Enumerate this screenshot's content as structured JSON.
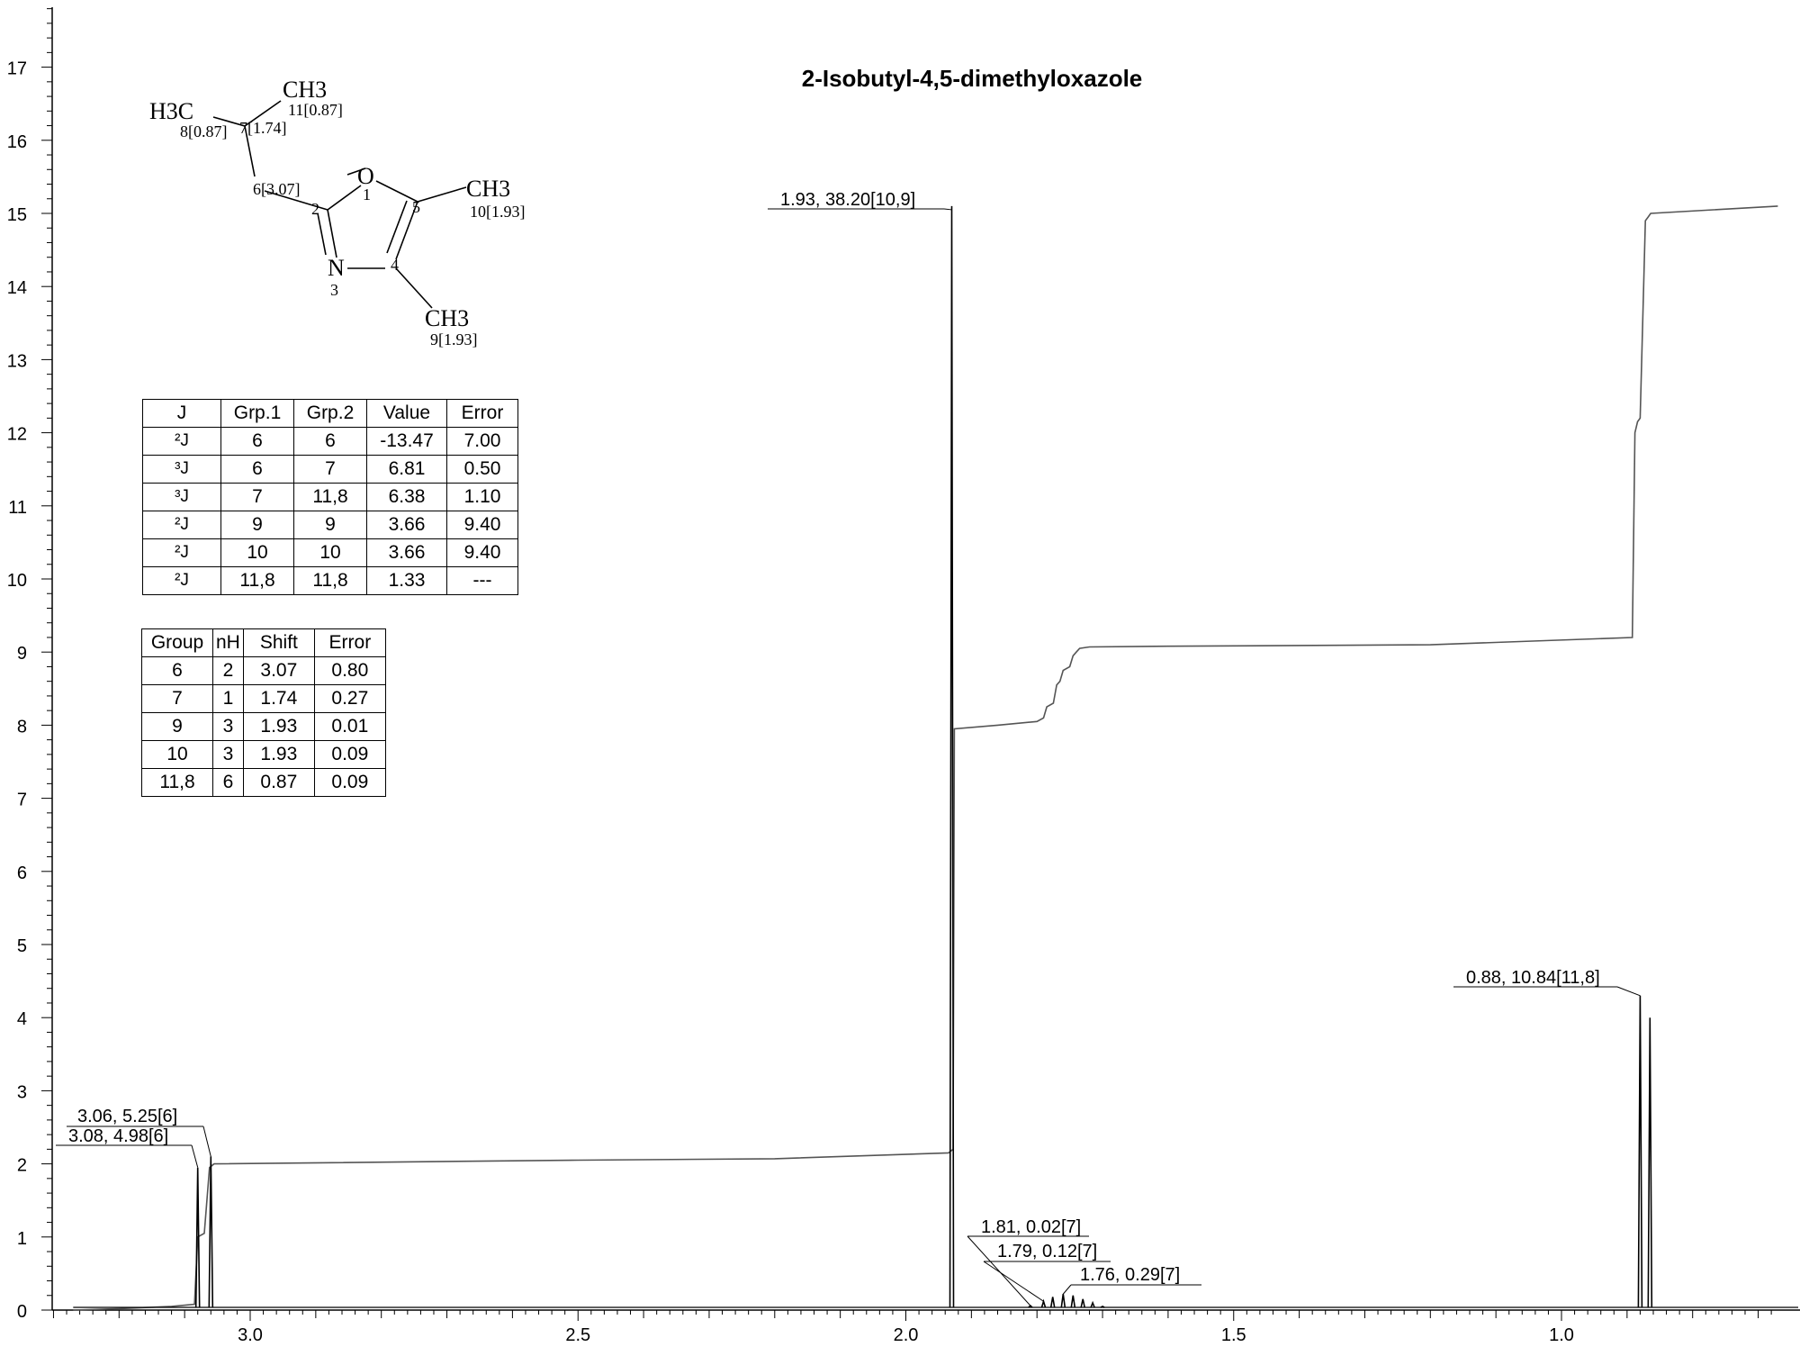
{
  "chart_data": {
    "type": "line",
    "title": "2-Isobutyl-4,5-dimethyloxazole",
    "xlabel": "",
    "ylabel": "",
    "x_reversed": true,
    "xlim": [
      3.3,
      0.67
    ],
    "ylim": [
      0,
      18
    ],
    "x_ticks": [
      3.0,
      2.5,
      2.0,
      1.5,
      1.0
    ],
    "x_tick_labels": [
      "3.0",
      "2.5",
      "2.0",
      "1.5",
      "1.0"
    ],
    "y_ticks": [
      0,
      1,
      2,
      3,
      4,
      5,
      6,
      7,
      8,
      9,
      10,
      11,
      12,
      13,
      14,
      15,
      16,
      17
    ],
    "y_tick_labels": [
      "0",
      "1",
      "2",
      "3",
      "4",
      "5",
      "6",
      "7",
      "8",
      "9",
      "10",
      "11",
      "12",
      "13",
      "14",
      "15",
      "16",
      "17"
    ],
    "grid": false,
    "series": [
      {
        "role": "spectrum",
        "peaks": [
          {
            "ppm": 3.08,
            "height": 1.95
          },
          {
            "ppm": 3.06,
            "height": 2.1
          },
          {
            "ppm": 1.93,
            "height": 15.1
          },
          {
            "ppm": 1.81,
            "height": 0.06
          },
          {
            "ppm": 1.79,
            "height": 0.12
          },
          {
            "ppm": 1.776,
            "height": 0.18
          },
          {
            "ppm": 1.76,
            "height": 0.22
          },
          {
            "ppm": 1.745,
            "height": 0.2
          },
          {
            "ppm": 1.73,
            "height": 0.15
          },
          {
            "ppm": 1.715,
            "height": 0.1
          },
          {
            "ppm": 1.7,
            "height": 0.05
          },
          {
            "ppm": 0.88,
            "height": 4.3
          },
          {
            "ppm": 0.865,
            "height": 4.0
          }
        ]
      },
      {
        "role": "integral",
        "x": [
          3.27,
          3.2,
          3.12,
          3.085,
          3.08,
          3.07,
          3.062,
          3.055,
          2.5,
          2.2,
          1.935,
          1.928,
          1.926,
          1.86,
          1.8,
          1.79,
          1.785,
          1.775,
          1.77,
          1.765,
          1.76,
          1.75,
          1.745,
          1.74,
          1.735,
          1.72,
          1.6,
          1.2,
          0.892,
          0.888,
          0.884,
          0.88,
          0.872,
          0.868,
          0.864,
          0.67
        ],
        "y": [
          0.0,
          0.02,
          0.05,
          0.08,
          1.0,
          1.05,
          1.95,
          2.0,
          2.05,
          2.07,
          2.15,
          2.2,
          7.95,
          8.0,
          8.05,
          8.1,
          8.25,
          8.3,
          8.55,
          8.6,
          8.75,
          8.8,
          8.95,
          9.0,
          9.05,
          9.07,
          9.08,
          9.1,
          9.2,
          12.0,
          12.15,
          12.2,
          14.9,
          14.95,
          15.0,
          15.1
        ]
      }
    ],
    "annotations": [
      {
        "text": "1.93, 38.20[10,9]",
        "ppm": 1.93
      },
      {
        "text": "3.06, 5.25[6]",
        "ppm": 3.06
      },
      {
        "text": "3.08, 4.98[6]",
        "ppm": 3.08
      },
      {
        "text": "1.81, 0.02[7]",
        "ppm": 1.81
      },
      {
        "text": "1.79, 0.12[7]",
        "ppm": 1.79
      },
      {
        "text": "1.76, 0.29[7]",
        "ppm": 1.76
      },
      {
        "text": "0.88, 10.84[11,8]",
        "ppm": 0.88
      }
    ]
  },
  "molecule": {
    "atoms": {
      "O1": "O",
      "N3": "N",
      "CH3_11": "CH3",
      "H3C_8": "H3C",
      "CH3_10": "CH3",
      "CH3_9": "CH3"
    },
    "labels": {
      "a1": "1",
      "a2": "2",
      "a3": "3",
      "a4": "4",
      "a5": "5",
      "a6": "6[3.07]",
      "a7": "7[1.74]",
      "a8": "8[0.87]",
      "a9": "9[1.93]",
      "a10": "10[1.93]",
      "a11": "11[0.87]"
    }
  },
  "coupling_table": {
    "headers": [
      "J",
      "Grp.1",
      "Grp.2",
      "Value",
      "Error"
    ],
    "rows": [
      [
        "²J",
        "6",
        "6",
        "-13.47",
        "7.00"
      ],
      [
        "³J",
        "6",
        "7",
        "6.81",
        "0.50"
      ],
      [
        "³J",
        "7",
        "11,8",
        "6.38",
        "1.10"
      ],
      [
        "²J",
        "9",
        "9",
        "3.66",
        "9.40"
      ],
      [
        "²J",
        "10",
        "10",
        "3.66",
        "9.40"
      ],
      [
        "²J",
        "11,8",
        "11,8",
        "1.33",
        "---"
      ]
    ]
  },
  "shift_table": {
    "headers": [
      "Group",
      "nH",
      "Shift",
      "Error"
    ],
    "rows": [
      [
        "6",
        "2",
        "3.07",
        "0.80"
      ],
      [
        "7",
        "1",
        "1.74",
        "0.27"
      ],
      [
        "9",
        "3",
        "1.93",
        "0.01"
      ],
      [
        "10",
        "3",
        "1.93",
        "0.09"
      ],
      [
        "11,8",
        "6",
        "0.87",
        "0.09"
      ]
    ]
  }
}
